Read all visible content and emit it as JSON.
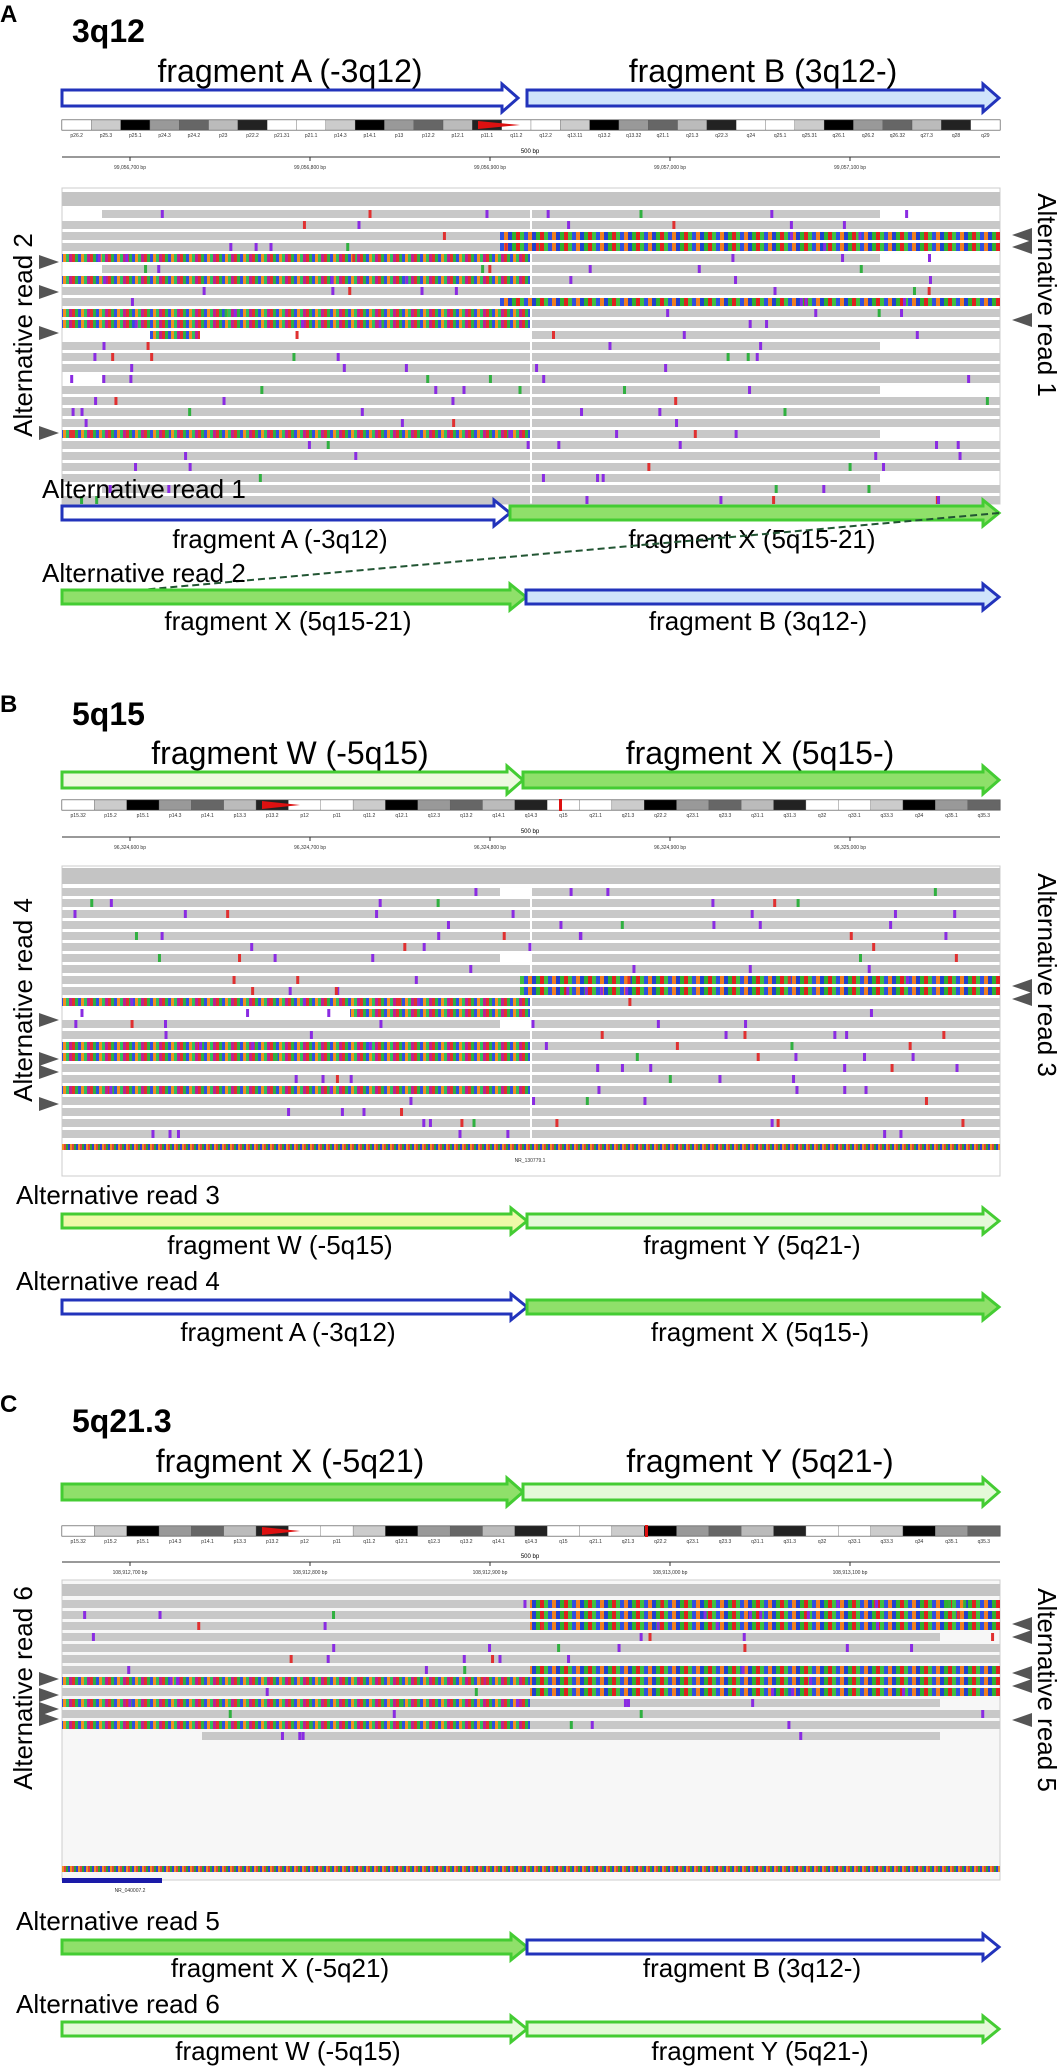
{
  "panels": [
    {
      "letter": "A",
      "locus": "3q12",
      "top_frag_left": "fragment A (-3q12)",
      "top_frag_right": "fragment B (3q12-)",
      "left_side_label": "Alternative read 2",
      "right_side_label": "Alternative read 1",
      "ruler_scale": "500 bp",
      "ruler_ticks": [
        "99,056,700 bp",
        "99,056,800 bp",
        "99,056,900 bp",
        "99,057,000 bp",
        "99,057,100 bp"
      ],
      "bands": [
        "p26.2",
        "p25.3",
        "p25.1",
        "p24.3",
        "p24.2",
        "p23",
        "p22.2",
        "p21.31",
        "p21.1",
        "p14.3",
        "p14.1",
        "p13",
        "p12.2",
        "p12.1",
        "p11.1",
        "q11.2",
        "q12.2",
        "q13.11",
        "q13.2",
        "q13.32",
        "q21.1",
        "q21.3",
        "q22.3",
        "q24",
        "q25.1",
        "q25.31",
        "q26.1",
        "q26.2",
        "q26.32",
        "q27.3",
        "q28",
        "q29"
      ],
      "reads": [
        {
          "label": "Alternative read 1",
          "left_text": "fragment A (-3q12)",
          "right_text": "fragment X (5q15-21)"
        },
        {
          "label": "Alternative read 2",
          "left_text": "fragment X (5q15-21)",
          "right_text": "fragment B (3q12-)"
        }
      ]
    },
    {
      "letter": "B",
      "locus": "5q15",
      "top_frag_left": "fragment W (-5q15)",
      "top_frag_right": "fragment X (5q15-)",
      "left_side_label": "Alternative read 4",
      "right_side_label": "Alternative read 3",
      "ruler_scale": "500 bp",
      "ruler_ticks": [
        "96,324,600 bp",
        "96,324,700 bp",
        "96,324,800 bp",
        "96,324,900 bp",
        "96,325,000 bp"
      ],
      "bands": [
        "p15.32",
        "p15.2",
        "p15.1",
        "p14.3",
        "p14.1",
        "p13.3",
        "p13.2",
        "p12",
        "p11",
        "q11.2",
        "q12.1",
        "q12.3",
        "q13.2",
        "q14.1",
        "q14.3",
        "q15",
        "q21.1",
        "q21.3",
        "q22.2",
        "q23.1",
        "q23.3",
        "q31.1",
        "q31.3",
        "q32",
        "q33.1",
        "q33.3",
        "q34",
        "q35.1",
        "q35.3"
      ],
      "gene_label": "NR_130779.1",
      "reads": [
        {
          "label": "Alternative read 3",
          "left_text": "fragment W (-5q15)",
          "right_text": "fragment Y (5q21-)"
        },
        {
          "label": "Alternative read 4",
          "left_text": "fragment A (-3q12)",
          "right_text": "fragment X (5q15-)"
        }
      ]
    },
    {
      "letter": "C",
      "locus": "5q21.3",
      "top_frag_left": "fragment X (-5q21)",
      "top_frag_right": "fragment Y (5q21-)",
      "left_side_label": "Alternative read 6",
      "right_side_label": "Alternative read 5",
      "ruler_scale": "500 bp",
      "ruler_ticks": [
        "108,912,700 bp",
        "108,912,800 bp",
        "108,912,900 bp",
        "108,913,000 bp",
        "108,913,100 bp"
      ],
      "bands": [
        "p15.32",
        "p15.2",
        "p15.1",
        "p14.3",
        "p14.1",
        "p13.3",
        "p13.2",
        "p12",
        "p11",
        "q11.2",
        "q12.1",
        "q12.3",
        "q13.2",
        "q14.1",
        "q14.3",
        "q15",
        "q21.1",
        "q21.3",
        "q22.2",
        "q23.1",
        "q23.3",
        "q31.1",
        "q31.3",
        "q32",
        "q33.1",
        "q33.3",
        "q34",
        "q35.1",
        "q35.3"
      ],
      "gene_label": "NR_040007.2",
      "reads": [
        {
          "label": "Alternative read 5",
          "left_text": "fragment X (-5q21)",
          "right_text": "fragment B (3q12-)"
        },
        {
          "label": "Alternative read 6",
          "left_text": "fragment W (-5q15)",
          "right_text": "fragment Y (5q21-)"
        }
      ]
    }
  ],
  "colors": {
    "blue_stroke": "#2233bb",
    "blue_fill": "#ffffff",
    "lightblue_fill": "#cfe4fb",
    "green_stroke": "#44cc33",
    "green_fill": "#8fe06a",
    "lightgreen_fill": "#e4f9d8",
    "lime_fill": "#eef9a8",
    "read_gray": "#c8c8c8",
    "mismatch_purple": "#8a2be2",
    "marker_gray": "#555555"
  }
}
